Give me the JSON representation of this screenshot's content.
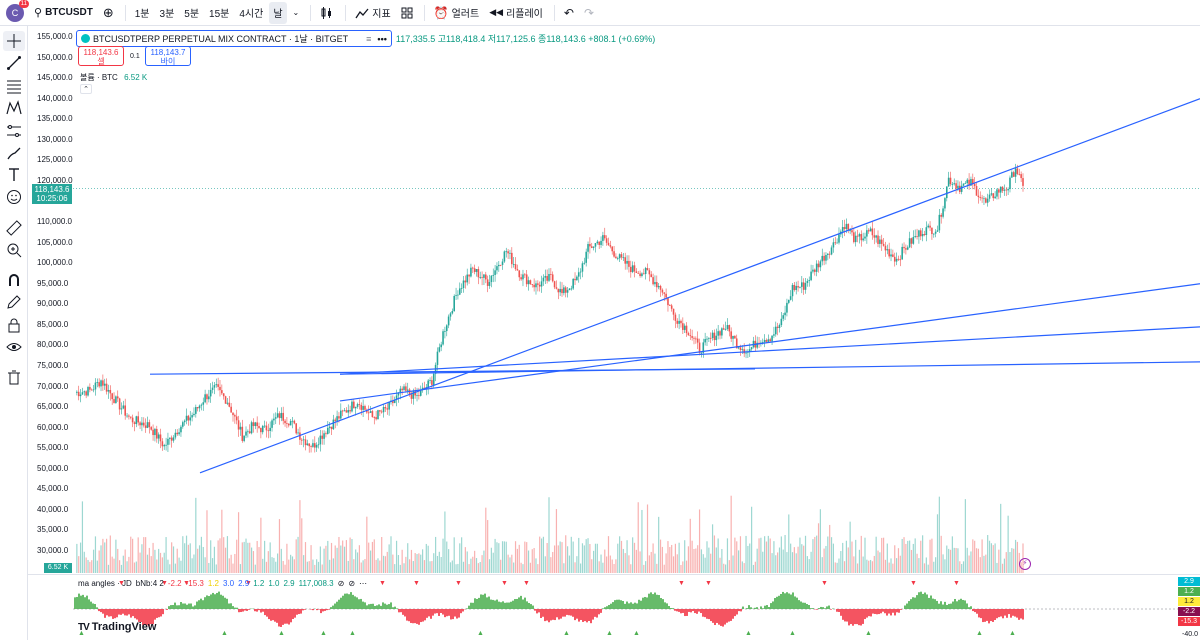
{
  "topbar": {
    "avatar_letter": "C",
    "notifications": "11",
    "symbol": "BTCUSDT",
    "intervals": [
      "1분",
      "3분",
      "5분",
      "15분",
      "4시간",
      "날"
    ],
    "selected_interval": "날",
    "indicators_label": "지표",
    "alert_label": "얼러트",
    "replay_label": "리플레이"
  },
  "legend": {
    "name": "BTCUSDTPERP PERPETUAL MIX CONTRACT · 1날 · BITGET",
    "ohlc": "117,335.5 고118,418.4 저117,125.6 종118,143.6 +808.1 (+0.69%)",
    "more": "•••",
    "sell_price": "118,143.6",
    "sell_label": "셀",
    "spread": "0.1",
    "buy_price": "118,143.7",
    "buy_label": "바이",
    "volume_label": "볼륨 · BTC",
    "volume_value": "6.52 K"
  },
  "price_tag": {
    "price": "118,143.6",
    "countdown": "10:25:06"
  },
  "volume_tag": "6.52 K",
  "indicator": {
    "name": "ma angles · JD",
    "values": [
      {
        "t": "bNb:4 2",
        "c": "#131722"
      },
      {
        "t": "-2.2",
        "c": "#f23645"
      },
      {
        "t": "-15.3",
        "c": "#f23645"
      },
      {
        "t": "1.2",
        "c": "#f0d000"
      },
      {
        "t": "3.0",
        "c": "#2962ff"
      },
      {
        "t": "2.9",
        "c": "#2962ff"
      },
      {
        "t": "1.2",
        "c": "#089981"
      },
      {
        "t": "1.0",
        "c": "#089981"
      },
      {
        "t": "2.9",
        "c": "#089981"
      },
      {
        "t": "117,008.3",
        "c": "#089981"
      }
    ],
    "right_tags": [
      {
        "t": "2.9",
        "bg": "#00bcd4"
      },
      {
        "t": "1.2",
        "bg": "#4caf50"
      },
      {
        "t": "1.2",
        "bg": "#ffeb3b"
      },
      {
        "t": "-2.2",
        "bg": "#880e4f"
      },
      {
        "t": "-15.3",
        "bg": "#f23645"
      }
    ],
    "bottom_value": "-40.0"
  },
  "brand": "TradingView",
  "colors": {
    "up": "#26a69a",
    "down": "#ef5350",
    "trendline": "#2962ff",
    "accent": "#2962ff"
  },
  "chart_data": {
    "type": "candlestick",
    "title": "BTCUSDTPERP PERPETUAL MIX CONTRACT · 1날 · BITGET",
    "y_ticks": [
      155000,
      150000,
      145000,
      140000,
      135000,
      130000,
      125000,
      120000,
      115000,
      110000,
      105000,
      100000,
      95000,
      90000,
      85000,
      80000,
      75000,
      70000,
      65000,
      60000,
      55000,
      50000,
      45000,
      40000,
      35000,
      30000
    ],
    "ylim": [
      27000,
      157000
    ],
    "price_keypoints": [
      [
        0,
        68500
      ],
      [
        8,
        69000
      ],
      [
        14,
        71500
      ],
      [
        22,
        66500
      ],
      [
        30,
        62000
      ],
      [
        40,
        60500
      ],
      [
        48,
        55500
      ],
      [
        56,
        60000
      ],
      [
        64,
        63500
      ],
      [
        70,
        67500
      ],
      [
        76,
        69500
      ],
      [
        82,
        66500
      ],
      [
        90,
        58000
      ],
      [
        96,
        60500
      ],
      [
        102,
        59500
      ],
      [
        110,
        63000
      ],
      [
        116,
        61500
      ],
      [
        122,
        57500
      ],
      [
        128,
        55500
      ],
      [
        136,
        60000
      ],
      [
        144,
        63500
      ],
      [
        152,
        66500
      ],
      [
        160,
        62500
      ],
      [
        168,
        64500
      ],
      [
        176,
        69000
      ],
      [
        184,
        67500
      ],
      [
        192,
        71500
      ],
      [
        198,
        83000
      ],
      [
        206,
        93500
      ],
      [
        214,
        98500
      ],
      [
        222,
        95500
      ],
      [
        232,
        103000
      ],
      [
        240,
        97000
      ],
      [
        248,
        94500
      ],
      [
        256,
        96500
      ],
      [
        262,
        92500
      ],
      [
        270,
        96000
      ],
      [
        276,
        103500
      ],
      [
        284,
        106000
      ],
      [
        292,
        101500
      ],
      [
        300,
        98500
      ],
      [
        308,
        97500
      ],
      [
        316,
        93500
      ],
      [
        322,
        87500
      ],
      [
        330,
        83500
      ],
      [
        336,
        79000
      ],
      [
        344,
        82500
      ],
      [
        350,
        84500
      ],
      [
        356,
        80500
      ],
      [
        362,
        78500
      ],
      [
        368,
        81500
      ],
      [
        374,
        82000
      ],
      [
        380,
        85500
      ],
      [
        386,
        94000
      ],
      [
        392,
        94500
      ],
      [
        400,
        100000
      ],
      [
        408,
        104500
      ],
      [
        414,
        109500
      ],
      [
        420,
        105500
      ],
      [
        428,
        107500
      ],
      [
        436,
        103500
      ],
      [
        442,
        101000
      ],
      [
        448,
        104500
      ],
      [
        456,
        108000
      ],
      [
        464,
        108500
      ],
      [
        470,
        120500
      ],
      [
        476,
        118500
      ],
      [
        482,
        119500
      ],
      [
        490,
        114500
      ],
      [
        496,
        117500
      ],
      [
        502,
        118500
      ],
      [
        506,
        123500
      ],
      [
        510,
        118143.6
      ]
    ],
    "volume_range": "~28,000 – 43,000 (relative bars)",
    "trendlines": [
      {
        "from": [
          150,
          73000
        ],
        "to": [
          755,
          74300
        ]
      },
      {
        "from": [
          200,
          49000
        ],
        "to": [
          1200,
          140000
        ]
      },
      {
        "from": [
          340,
          66500
        ],
        "to": [
          1200,
          95000
        ]
      },
      {
        "from": [
          340,
          73000
        ],
        "to": [
          1200,
          84500
        ]
      },
      {
        "from": [
          340,
          73000
        ],
        "to": [
          1200,
          76000
        ]
      }
    ],
    "last_price": 118143.6,
    "change": "+808.1 (+0.69%)"
  }
}
